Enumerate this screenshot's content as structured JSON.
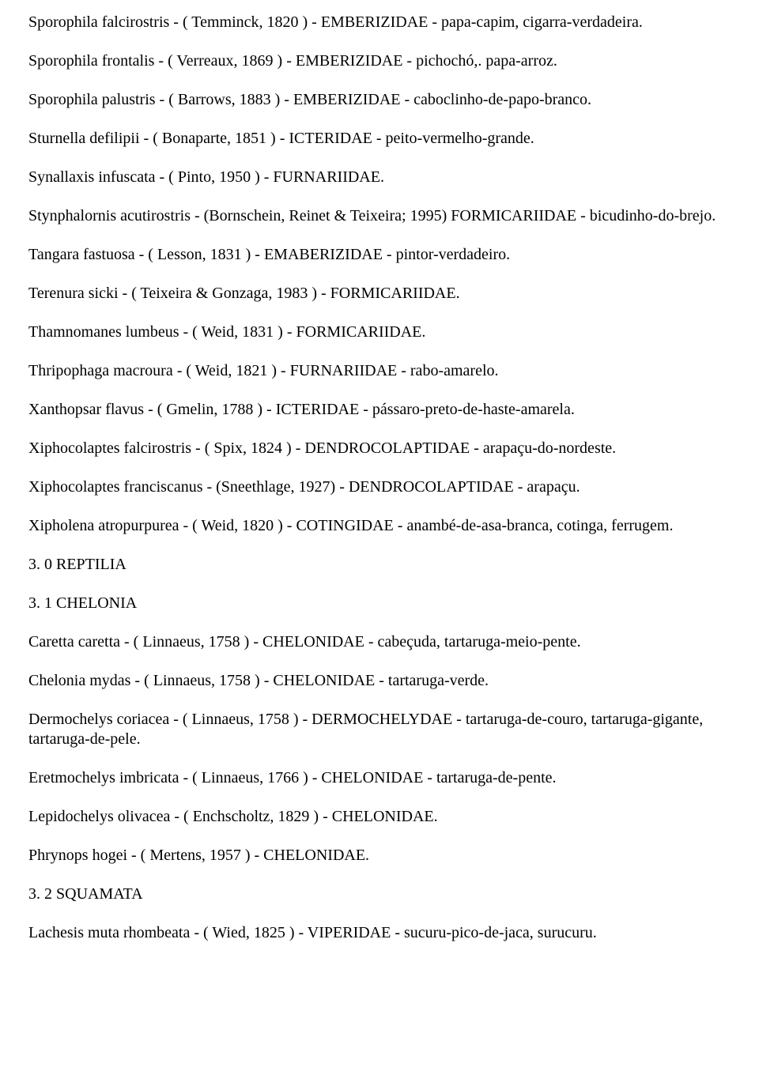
{
  "document": {
    "text_color": "#000000",
    "background_color": "#ffffff",
    "font_family": "Times New Roman",
    "font_size_pt": 15,
    "entries": [
      "Sporophila falcirostris - ( Temminck, 1820 ) - EMBERIZIDAE - papa-capim, cigarra-verdadeira.",
      "Sporophila frontalis - ( Verreaux, 1869 ) - EMBERIZIDAE - pichochó,. papa-arroz.",
      "Sporophila palustris - ( Barrows, 1883 ) - EMBERIZIDAE - caboclinho-de-papo-branco.",
      "Sturnella defilipii - ( Bonaparte, 1851 ) - ICTERIDAE - peito-vermelho-grande.",
      "Synallaxis infuscata - ( Pinto, 1950 ) - FURNARIIDAE.",
      "Stynphalornis acutirostris - (Bornschein, Reinet & Teixeira; 1995) FORMICARIIDAE - bicudinho-do-brejo.",
      "Tangara fastuosa - ( Lesson, 1831 ) - EMABERIZIDAE - pintor-verdadeiro.",
      "Terenura sicki - ( Teixeira & Gonzaga, 1983 ) - FORMICARIIDAE.",
      "Thamnomanes lumbeus - ( Weid, 1831 ) - FORMICARIIDAE.",
      "Thripophaga macroura - ( Weid, 1821 ) - FURNARIIDAE - rabo-amarelo.",
      "Xanthopsar flavus - ( Gmelin, 1788 ) - ICTERIDAE - pássaro-preto-de-haste-amarela.",
      "Xiphocolaptes falcirostris - ( Spix, 1824 ) - DENDROCOLAPTIDAE - arapaçu-do-nordeste.",
      "Xiphocolaptes franciscanus - (Sneethlage, 1927) - DENDROCOLAPTIDAE - arapaçu.",
      "Xipholena atropurpurea - ( Weid, 1820 ) - COTINGIDAE - anambé-de-asa-branca, cotinga, ferrugem.",
      "3. 0 REPTILIA",
      "3. 1 CHELONIA",
      "Caretta caretta - ( Linnaeus, 1758 ) - CHELONIDAE - cabeçuda, tartaruga-meio-pente.",
      "Chelonia mydas - ( Linnaeus, 1758 ) - CHELONIDAE - tartaruga-verde.",
      "Dermochelys coriacea - ( Linnaeus, 1758 ) - DERMOCHELYDAE - tartaruga-de-couro, tartaruga-gigante, tartaruga-de-pele.",
      "Eretmochelys imbricata - ( Linnaeus, 1766 ) - CHELONIDAE - tartaruga-de-pente.",
      "Lepidochelys olivacea - ( Enchscholtz, 1829 ) - CHELONIDAE.",
      "Phrynops hogei - ( Mertens, 1957 ) - CHELONIDAE.",
      "3. 2 SQUAMATA",
      "Lachesis muta rhombeata - ( Wied, 1825 ) - VIPERIDAE - sucuru-pico-de-jaca, surucuru."
    ]
  }
}
